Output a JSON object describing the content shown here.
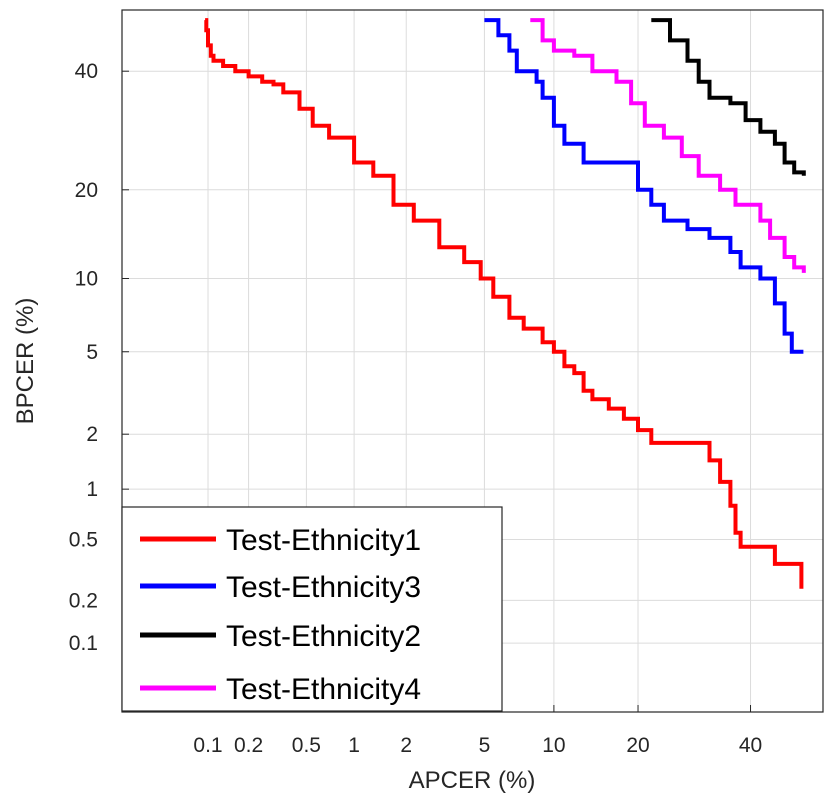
{
  "chart_data": {
    "type": "line",
    "title": "",
    "xlabel": "APCER (%)",
    "ylabel": "BPCER (%)",
    "x_scale": "probit",
    "y_scale": "probit",
    "xlim": [
      0.02,
      55
    ],
    "ylim": [
      0.03,
      52
    ],
    "grid": true,
    "legend_position": "bottom-left",
    "x_ticks": [
      0.1,
      0.2,
      0.5,
      1,
      2,
      5,
      10,
      20,
      40
    ],
    "x_tick_labels": [
      "0.1",
      "0.2",
      "0.5",
      "1",
      "2",
      "5",
      "10",
      "20",
      "40"
    ],
    "y_ticks": [
      0.1,
      0.2,
      0.5,
      1,
      2,
      5,
      10,
      20,
      40
    ],
    "y_tick_labels": [
      "0.1",
      "0.2",
      "0.5",
      "1",
      "2",
      "5",
      "10",
      "20",
      "40"
    ],
    "series": [
      {
        "name": "Test-Ethnicity1",
        "color": "#ff0000",
        "points": [
          [
            0.095,
            50
          ],
          [
            0.097,
            48
          ],
          [
            0.1,
            45
          ],
          [
            0.105,
            43
          ],
          [
            0.11,
            42
          ],
          [
            0.13,
            41
          ],
          [
            0.16,
            40
          ],
          [
            0.2,
            39
          ],
          [
            0.25,
            38
          ],
          [
            0.3,
            37.5
          ],
          [
            0.35,
            36
          ],
          [
            0.45,
            33
          ],
          [
            0.55,
            30
          ],
          [
            0.7,
            28
          ],
          [
            1.0,
            24
          ],
          [
            1.3,
            22
          ],
          [
            1.7,
            18
          ],
          [
            2.2,
            16
          ],
          [
            3.0,
            13
          ],
          [
            4.0,
            11.5
          ],
          [
            4.8,
            10
          ],
          [
            5.5,
            8.5
          ],
          [
            6.5,
            7
          ],
          [
            7.5,
            6.3
          ],
          [
            9.0,
            5.5
          ],
          [
            10.0,
            5.0
          ],
          [
            11.0,
            4.3
          ],
          [
            12.0,
            4.0
          ],
          [
            13.0,
            3.3
          ],
          [
            14.0,
            3.0
          ],
          [
            16.0,
            2.7
          ],
          [
            18.0,
            2.4
          ],
          [
            20.0,
            2.1
          ],
          [
            22.0,
            1.8
          ],
          [
            28.0,
            1.8
          ],
          [
            32.0,
            1.45
          ],
          [
            34.0,
            1.1
          ],
          [
            36.0,
            0.8
          ],
          [
            37.0,
            0.55
          ],
          [
            38.0,
            0.45
          ],
          [
            44.0,
            0.45
          ],
          [
            45.0,
            0.35
          ],
          [
            50.0,
            0.35
          ],
          [
            50.5,
            0.24
          ]
        ]
      },
      {
        "name": "Test-Ethnicity3",
        "color": "#0000ff",
        "points": [
          [
            5.0,
            50
          ],
          [
            5.8,
            47
          ],
          [
            6.5,
            44
          ],
          [
            7.0,
            40
          ],
          [
            8.5,
            38
          ],
          [
            9.0,
            35
          ],
          [
            10.0,
            30
          ],
          [
            11.0,
            27
          ],
          [
            13.0,
            24
          ],
          [
            18.0,
            24
          ],
          [
            20.0,
            20
          ],
          [
            22.0,
            18
          ],
          [
            24.0,
            16
          ],
          [
            28.0,
            15
          ],
          [
            32.0,
            14
          ],
          [
            36.0,
            12.5
          ],
          [
            38.0,
            11
          ],
          [
            42.0,
            10
          ],
          [
            45.0,
            8
          ],
          [
            47.0,
            6
          ],
          [
            48.5,
            5.0
          ],
          [
            50.5,
            4.9
          ]
        ]
      },
      {
        "name": "Test-Ethnicity2",
        "color": "#000000",
        "points": [
          [
            22.0,
            50
          ],
          [
            25.0,
            46
          ],
          [
            28.0,
            42
          ],
          [
            30.0,
            38
          ],
          [
            32.0,
            35
          ],
          [
            36.0,
            34
          ],
          [
            39.0,
            31
          ],
          [
            42.0,
            29
          ],
          [
            45.0,
            27
          ],
          [
            47.0,
            24
          ],
          [
            49.0,
            22.5
          ],
          [
            51.0,
            22
          ]
        ]
      },
      {
        "name": "Test-Ethnicity4",
        "color": "#ff00ff",
        "points": [
          [
            8.0,
            50
          ],
          [
            9.0,
            46
          ],
          [
            10.0,
            44
          ],
          [
            12.0,
            43
          ],
          [
            14.0,
            40
          ],
          [
            17.0,
            38
          ],
          [
            19.0,
            34
          ],
          [
            21.0,
            30
          ],
          [
            24.0,
            28
          ],
          [
            27.0,
            25
          ],
          [
            30.0,
            22
          ],
          [
            34.0,
            20
          ],
          [
            37.0,
            18
          ],
          [
            42.0,
            16
          ],
          [
            44.0,
            14
          ],
          [
            47.0,
            12
          ],
          [
            49.0,
            11
          ],
          [
            51.0,
            10.5
          ]
        ]
      }
    ]
  }
}
